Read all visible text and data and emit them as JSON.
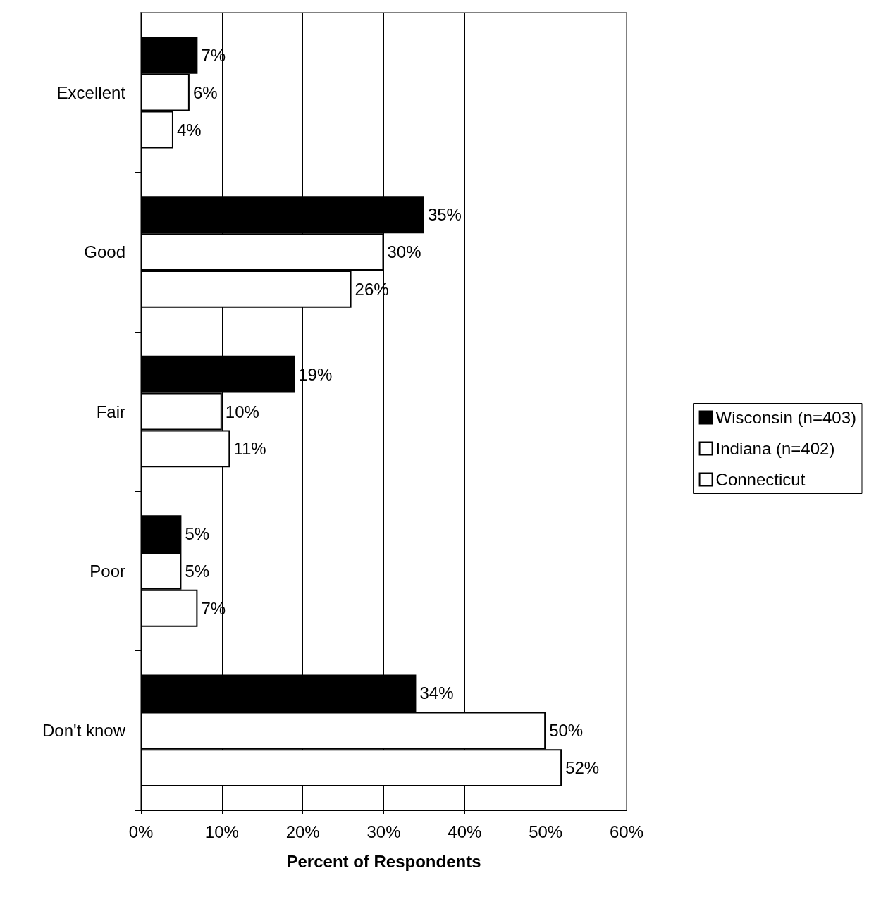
{
  "chart_data": {
    "type": "bar",
    "orientation": "horizontal",
    "xlabel": "Percent of Respondents",
    "categories": [
      "Excellent",
      "Good",
      "Fair",
      "Poor",
      "Don't know"
    ],
    "series": [
      {
        "name": "Wisconsin (n=403)",
        "color": "#000000",
        "values": [
          7,
          35,
          19,
          5,
          34
        ],
        "value_labels": [
          "7%",
          "35%",
          "19%",
          "5%",
          "34%"
        ]
      },
      {
        "name": "Indiana (n=402)",
        "color": "#ffffff",
        "values": [
          6,
          30,
          10,
          5,
          50
        ],
        "value_labels": [
          "6%",
          "30%",
          "10%",
          "5%",
          "50%"
        ]
      },
      {
        "name": "Connecticut",
        "color": "#ffffff",
        "values": [
          4,
          26,
          11,
          7,
          52
        ],
        "value_labels": [
          "4%",
          "26%",
          "11%",
          "7%",
          "52%"
        ]
      }
    ],
    "xlim": [
      0,
      60
    ],
    "xticks": [
      {
        "value": 0,
        "label": "0%"
      },
      {
        "value": 10,
        "label": "10%"
      },
      {
        "value": 20,
        "label": "20%"
      },
      {
        "value": 30,
        "label": "30%"
      },
      {
        "value": 40,
        "label": "40%"
      },
      {
        "value": 50,
        "label": "50%"
      },
      {
        "value": 60,
        "label": "60%"
      }
    ],
    "grid": "x",
    "legend": "right"
  }
}
